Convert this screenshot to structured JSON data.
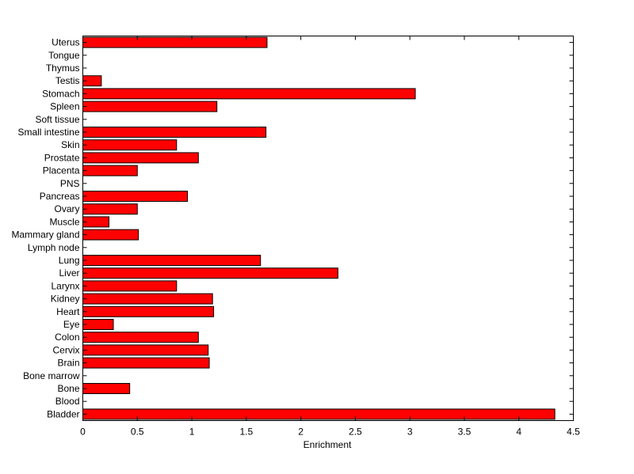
{
  "chart_data": {
    "type": "bar",
    "orientation": "horizontal",
    "title": "",
    "xlabel": "Enrichment",
    "ylabel": "",
    "xlim": [
      0,
      4.5
    ],
    "xticks": [
      "0",
      "0.5",
      "1",
      "1.5",
      "2",
      "2.5",
      "3",
      "3.5",
      "4",
      "4.5"
    ],
    "grid": false,
    "bar_color": "#ff0000",
    "edge_color": "#000000",
    "categories": [
      "Bladder",
      "Blood",
      "Bone",
      "Bone marrow",
      "Brain",
      "Cervix",
      "Colon",
      "Eye",
      "Heart",
      "Kidney",
      "Larynx",
      "Liver",
      "Lung",
      "Lymph node",
      "Mammary gland",
      "Muscle",
      "Ovary",
      "Pancreas",
      "PNS",
      "Placenta",
      "Prostate",
      "Skin",
      "Small intestine",
      "Soft tissue",
      "Spleen",
      "Stomach",
      "Testis",
      "Thymus",
      "Tongue",
      "Uterus"
    ],
    "values": [
      4.33,
      0,
      0.43,
      0,
      1.16,
      1.15,
      1.06,
      0.28,
      1.2,
      1.19,
      0.86,
      2.34,
      1.63,
      0,
      0.51,
      0.24,
      0.5,
      0.96,
      0,
      0.5,
      1.06,
      0.86,
      1.68,
      0,
      1.23,
      3.05,
      0.17,
      0,
      0,
      1.69
    ]
  }
}
